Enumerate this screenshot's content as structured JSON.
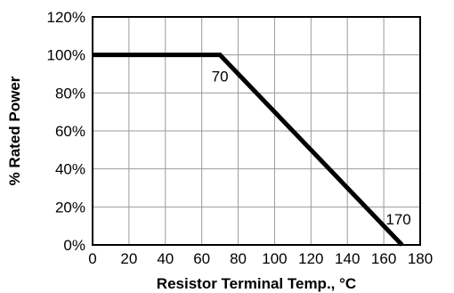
{
  "chart_data": {
    "type": "line",
    "title": "",
    "xlabel": "Resistor Terminal Temp., °C",
    "ylabel": "% Rated Power",
    "xlim": [
      0,
      180
    ],
    "ylim": [
      0,
      120
    ],
    "x_ticks": [
      0,
      20,
      40,
      60,
      80,
      100,
      120,
      140,
      160,
      180
    ],
    "y_ticks": [
      0,
      20,
      40,
      60,
      80,
      100,
      120
    ],
    "x_tick_labels": [
      "0",
      "20",
      "40",
      "60",
      "80",
      "100",
      "120",
      "140",
      "160",
      "180"
    ],
    "y_tick_labels": [
      "0%",
      "20%",
      "40%",
      "60%",
      "80%",
      "100%",
      "120%"
    ],
    "grid": true,
    "series": [
      {
        "x": [
          0,
          70,
          170
        ],
        "y": [
          100,
          100,
          0
        ]
      }
    ],
    "annotations": [
      {
        "text": "70",
        "x": 70,
        "y": 100
      },
      {
        "text": "170",
        "x": 170,
        "y": 0
      }
    ]
  }
}
